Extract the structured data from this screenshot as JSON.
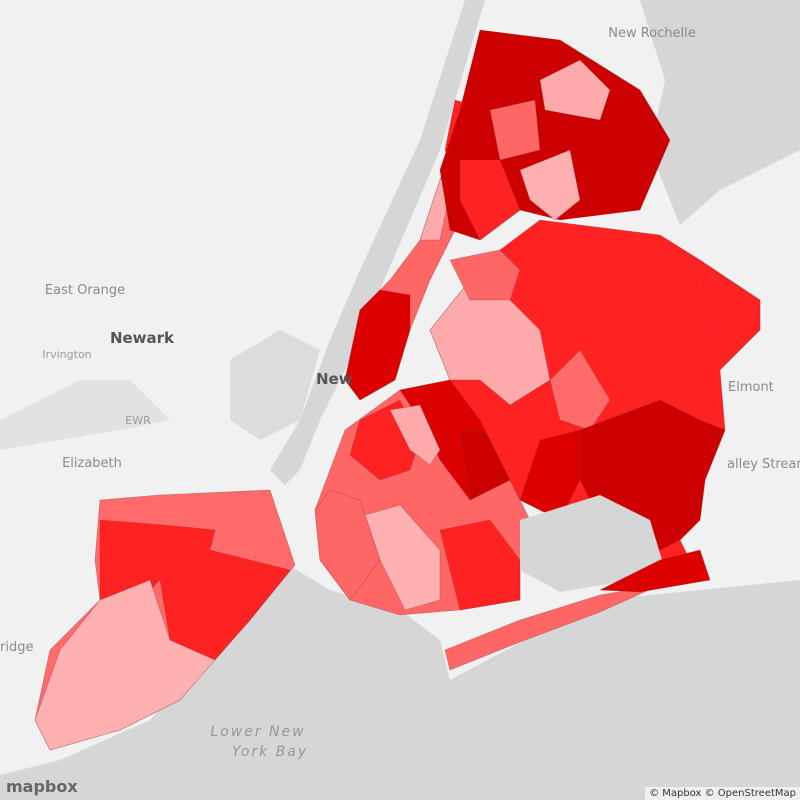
{
  "map": {
    "labels": {
      "new_rochelle": "New Rochelle",
      "east_orange": "East Orange",
      "newark": "Newark",
      "irvington": "Irvington",
      "ewr": "EWR",
      "elizabeth": "Elizabeth",
      "new_york": "New",
      "elmont": "Elmont",
      "valley_stream": "alley Stream",
      "bridge": "ridge",
      "bay_line1": "Lower New",
      "bay_line2": "York Bay"
    },
    "logo": "mapbox",
    "attribution": "© Mapbox © OpenStreetMap"
  }
}
